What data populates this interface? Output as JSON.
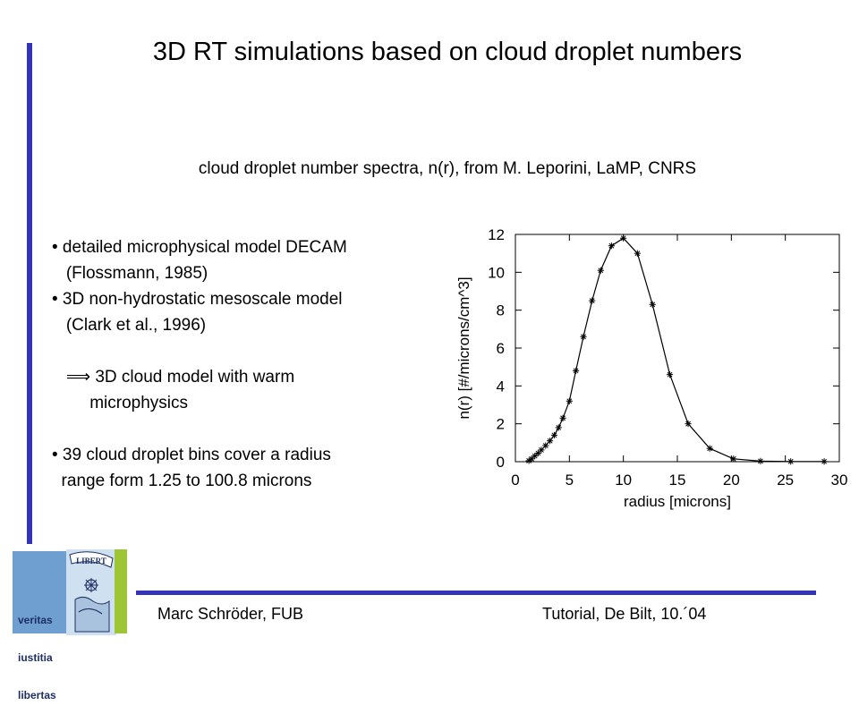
{
  "title": "3D RT simulations based on cloud droplet numbers",
  "subtitle": "cloud droplet number spectra, n(r), from M. Leporini, LaMP, CNRS",
  "bullets": [
    "• detailed microphysical model DECAM",
    "   (Flossmann, 1985)",
    "• 3D non-hydrostatic mesoscale model",
    "   (Clark et al., 1996)",
    "",
    "   ⟹ 3D cloud model with warm",
    "        microphysics",
    "",
    "• 39 cloud droplet bins cover a radius",
    "  range form 1.25 to 100.8 microns"
  ],
  "footer": {
    "left": "Marc Schröder, FUB",
    "right": "Tutorial, De Bilt, 10.´04"
  },
  "logo": {
    "motto": [
      "veritas",
      "iustitia",
      "libertas"
    ],
    "seal_text": "LIBERTAS",
    "colors": {
      "blue": "#6f9fd0",
      "green": "#9ec535",
      "navy": "#1e2f63"
    }
  },
  "colors": {
    "accent": "#3434b8"
  },
  "chart_data": {
    "type": "line",
    "marker": "asterisk",
    "xlabel": "radius [microns]",
    "ylabel": "n(r) [#/microns/cm^3]",
    "xlim": [
      0,
      30
    ],
    "ylim": [
      0,
      12
    ],
    "xticks": [
      0,
      5,
      10,
      15,
      20,
      25,
      30
    ],
    "yticks": [
      0,
      2,
      4,
      6,
      8,
      10,
      12
    ],
    "x": [
      1.25,
      1.5,
      1.8,
      2.1,
      2.4,
      2.8,
      3.2,
      3.6,
      4.0,
      4.4,
      5.0,
      5.6,
      6.3,
      7.1,
      7.9,
      8.9,
      10.0,
      11.3,
      12.7,
      14.3,
      16.0,
      18.0,
      20.2,
      22.7,
      25.5,
      28.6
    ],
    "y": [
      0.05,
      0.15,
      0.3,
      0.45,
      0.62,
      0.85,
      1.1,
      1.4,
      1.8,
      2.3,
      3.2,
      4.8,
      6.6,
      8.5,
      10.1,
      11.4,
      11.8,
      11.0,
      8.3,
      4.6,
      2.0,
      0.7,
      0.15,
      0.03,
      0.01,
      0.01
    ]
  }
}
